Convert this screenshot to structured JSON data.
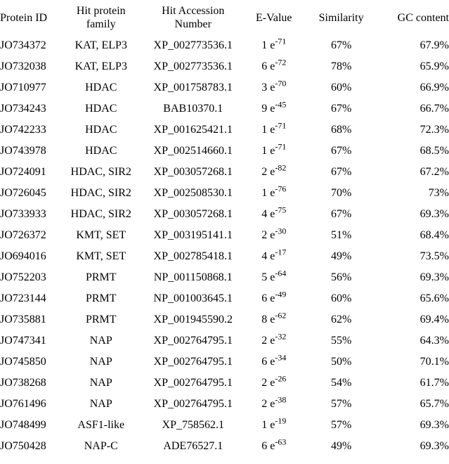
{
  "headers": {
    "protein_id": "Protein ID",
    "family": "Hit protein\nfamily",
    "accession": "Hit Accession\nNumber",
    "evalue": "E-Value",
    "similarity": "Similarity",
    "gc": "GC content"
  },
  "rows": [
    {
      "protein_id": "JO734372",
      "family": "KAT, ELP3",
      "accession": "XP_002773536.1",
      "e_base": "1 e",
      "e_exp": "-71",
      "similarity": "67%",
      "gc": "67.9%"
    },
    {
      "protein_id": "JO732038",
      "family": "KAT, ELP3",
      "accession": "XP_002773536.1",
      "e_base": "6 e",
      "e_exp": "-72",
      "similarity": "78%",
      "gc": "65.9%"
    },
    {
      "protein_id": "JO710977",
      "family": "HDAC",
      "accession": "XP_001758783.1",
      "e_base": "3 e",
      "e_exp": "-70",
      "similarity": "60%",
      "gc": "66.9%"
    },
    {
      "protein_id": "JO734243",
      "family": "HDAC",
      "accession": "BAB10370.1",
      "e_base": "9 e",
      "e_exp": "-45",
      "similarity": "67%",
      "gc": "66.7%"
    },
    {
      "protein_id": "JO742233",
      "family": "HDAC",
      "accession": "XP_001625421.1",
      "e_base": "1 e",
      "e_exp": "-71",
      "similarity": "68%",
      "gc": "72.3%"
    },
    {
      "protein_id": "JO743978",
      "family": "HDAC",
      "accession": "XP_002514660.1",
      "e_base": "1 e",
      "e_exp": "-71",
      "similarity": "67%",
      "gc": "68.5%"
    },
    {
      "protein_id": "JO724091",
      "family": "HDAC, SIR2",
      "accession": "XP_003057268.1",
      "e_base": "2 e",
      "e_exp": "-82",
      "similarity": "67%",
      "gc": "67.2%"
    },
    {
      "protein_id": "JO726045",
      "family": "HDAC, SIR2",
      "accession": "XP_002508530.1",
      "e_base": "1 e",
      "e_exp": "-76",
      "similarity": "70%",
      "gc": "73%"
    },
    {
      "protein_id": "JO733933",
      "family": "HDAC, SIR2",
      "accession": "XP_003057268.1",
      "e_base": "4 e",
      "e_exp": "-75",
      "similarity": "67%",
      "gc": "69.3%"
    },
    {
      "protein_id": "JO726372",
      "family": "KMT, SET",
      "accession": "XP_003195141.1",
      "e_base": "2 e",
      "e_exp": "-30",
      "similarity": "51%",
      "gc": "68.4%"
    },
    {
      "protein_id": "JO694016",
      "family": "KMT, SET",
      "accession": "XP_002785418.1",
      "e_base": "4 e",
      "e_exp": "-17",
      "similarity": "49%",
      "gc": "73.5%"
    },
    {
      "protein_id": "JO752203",
      "family": "PRMT",
      "accession": "NP_001150868.1",
      "e_base": "5 e",
      "e_exp": "-64",
      "similarity": "56%",
      "gc": "69.3%"
    },
    {
      "protein_id": "JO723144",
      "family": "PRMT",
      "accession": "NP_001003645.1",
      "e_base": "6 e",
      "e_exp": "-49",
      "similarity": "60%",
      "gc": "65.6%"
    },
    {
      "protein_id": "JO735881",
      "family": "PRMT",
      "accession": "XP_001945590.2",
      "e_base": "8 e",
      "e_exp": "-62",
      "similarity": "62%",
      "gc": "69.4%"
    },
    {
      "protein_id": "JO747341",
      "family": "NAP",
      "accession": "XP_002764795.1",
      "e_base": "2 e",
      "e_exp": "-32",
      "similarity": "55%",
      "gc": "64.3%"
    },
    {
      "protein_id": "JO745850",
      "family": "NAP",
      "accession": "XP_002764795.1",
      "e_base": "6 e",
      "e_exp": "-34",
      "similarity": "50%",
      "gc": "70.1%"
    },
    {
      "protein_id": "JO738268",
      "family": "NAP",
      "accession": "XP_002764795.1",
      "e_base": "2 e",
      "e_exp": "-26",
      "similarity": "54%",
      "gc": "61.7%"
    },
    {
      "protein_id": "JO761496",
      "family": "NAP",
      "accession": "XP_002764795.1",
      "e_base": "2 e",
      "e_exp": "-38",
      "similarity": "57%",
      "gc": "65.7%"
    },
    {
      "protein_id": "JO748499",
      "family": "ASF1-like",
      "accession": "XP_758562.1",
      "e_base": "1 e",
      "e_exp": "-19",
      "similarity": "57%",
      "gc": "69.3%"
    },
    {
      "protein_id": "JO750428",
      "family": "NAP-C",
      "accession": "ADE76527.1",
      "e_base": "6 e",
      "e_exp": "-63",
      "similarity": "49%",
      "gc": "69.3%"
    }
  ]
}
